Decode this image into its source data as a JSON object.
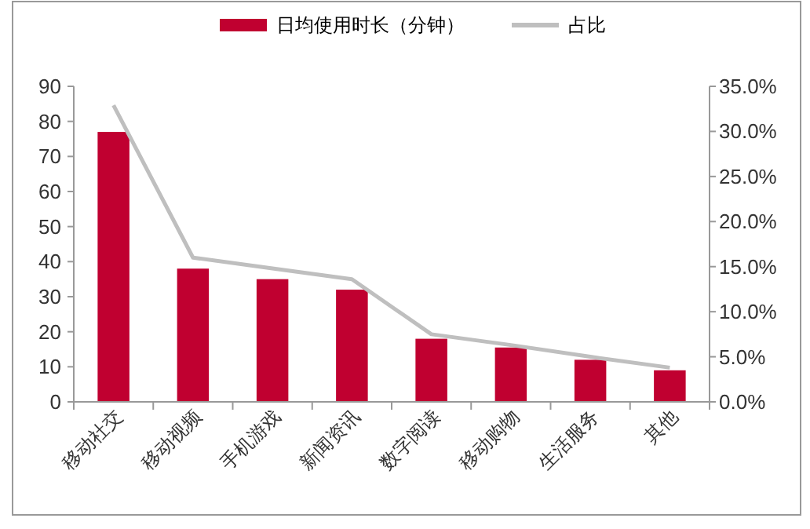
{
  "chart_data": {
    "type": "bar",
    "categories": [
      "移动社交",
      "移动视频",
      "手机游戏",
      "新闻资讯",
      "数字阅读",
      "移动购物",
      "生活服务",
      "其他"
    ],
    "series": [
      {
        "name": "日均使用时长（分钟）",
        "color": "#c00030",
        "values": [
          77,
          38,
          35,
          32,
          18,
          15.5,
          12,
          9
        ]
      },
      {
        "name": "占比",
        "type": "line",
        "axis": "y2",
        "color": "#bfbfbf",
        "values": [
          32.9,
          16.0,
          14.8,
          13.6,
          7.5,
          6.3,
          5.0,
          3.8
        ]
      }
    ],
    "ylim": [
      0,
      90
    ],
    "yticks": [
      0,
      10,
      20,
      30,
      40,
      50,
      60,
      70,
      80,
      90
    ],
    "y2lim": [
      0,
      35
    ],
    "y2ticks": [
      {
        "value": 0,
        "label": "0.0%"
      },
      {
        "value": 5,
        "label": "5.0%"
      },
      {
        "value": 10,
        "label": "10.0%"
      },
      {
        "value": 15,
        "label": "15.0%"
      },
      {
        "value": 20,
        "label": "20.0%"
      },
      {
        "value": 25,
        "label": "25.0%"
      },
      {
        "value": 30,
        "label": "30.0%"
      },
      {
        "value": 35,
        "label": "35.0%"
      }
    ],
    "legend": "top",
    "grid": false,
    "marker": "none"
  }
}
